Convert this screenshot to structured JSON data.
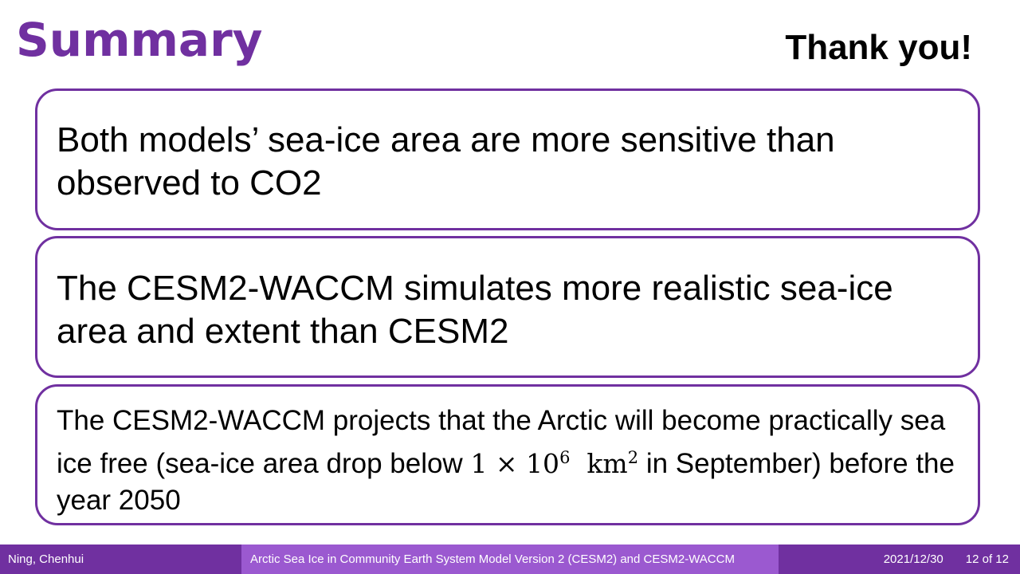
{
  "slide": {
    "title": "Summary",
    "thanks": "Thank you!",
    "points": [
      "Both models’ sea-ice area are more sensitive than observed to CO2",
      "The CESM2-WACCM simulates more realistic sea-ice area and extent than CESM2"
    ],
    "point3": {
      "text_before": "The CESM2-WACCM projects that the Arctic will become practically sea ice free (sea-ice area drop below ",
      "math_base": "1 × 10",
      "math_exp": "6",
      "math_unit": "km",
      "math_unit_exp": "2",
      "text_after": " in September)  before the year 2050"
    }
  },
  "footer": {
    "author": "Ning, Chenhui",
    "talk_title": "Arctic Sea Ice in Community Earth System Model Version 2 (CESM2) and CESM2-WACCM",
    "date": "2021/12/30",
    "page": "12 of 12"
  },
  "colors": {
    "accent": "#7030A0",
    "footer_mid": "#9B59D0",
    "text": "#000000"
  }
}
